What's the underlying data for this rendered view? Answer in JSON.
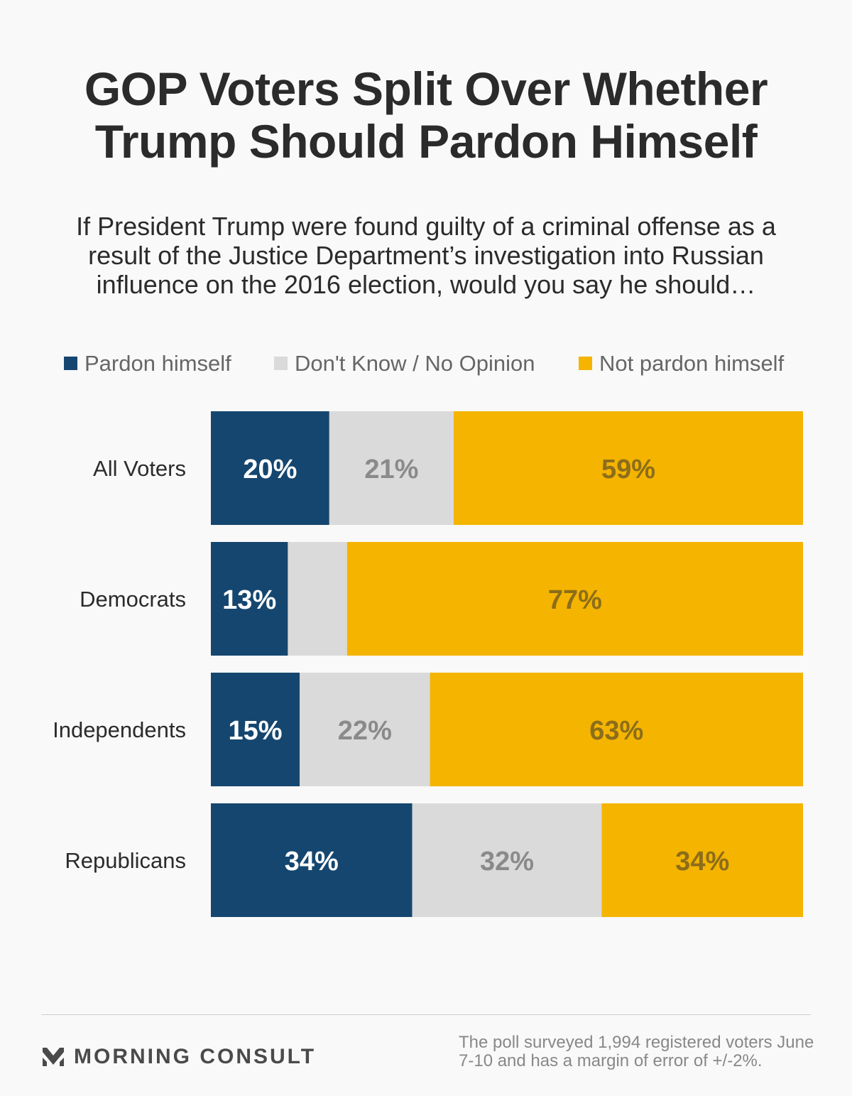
{
  "header": {
    "title_line1": "GOP Voters Split Over Whether",
    "title_line2": "Trump Should Pardon Himself",
    "question": "If President Trump were found guilty of a criminal offense as a result of the Justice Department’s investigation into Russian influence on the 2016 election, would you say he should…"
  },
  "colors": {
    "pardon": "#15466f",
    "dont_know": "#dadada",
    "not_pardon": "#f4b400",
    "pardon_label": "#ffffff",
    "dont_know_label": "#8a8a8a",
    "not_pardon_label": "#8c6d1a"
  },
  "chart_data": {
    "type": "bar",
    "orientation": "horizontal",
    "stacked": true,
    "categories": [
      "All Voters",
      "Democrats",
      "Independents",
      "Republicans"
    ],
    "series": [
      {
        "name": "Pardon himself",
        "values": [
          20,
          13,
          15,
          34
        ],
        "labels": [
          "20%",
          "13%",
          "15%",
          "34%"
        ]
      },
      {
        "name": "Don't Know / No Opinion",
        "values": [
          21,
          10,
          22,
          32
        ],
        "labels": [
          "21%",
          "",
          "22%",
          "32%"
        ]
      },
      {
        "name": "Not pardon himself",
        "values": [
          59,
          77,
          63,
          34
        ],
        "labels": [
          "59%",
          "77%",
          "63%",
          "34%"
        ]
      }
    ],
    "xlim": [
      0,
      100
    ],
    "legend_position": "top",
    "grid": false
  },
  "footer": {
    "logo_text": "MORNING CONSULT",
    "note_line1": "The poll surveyed 1,994 registered voters June",
    "note_line2": "7-10 and has a margin of error of +/-2%."
  }
}
